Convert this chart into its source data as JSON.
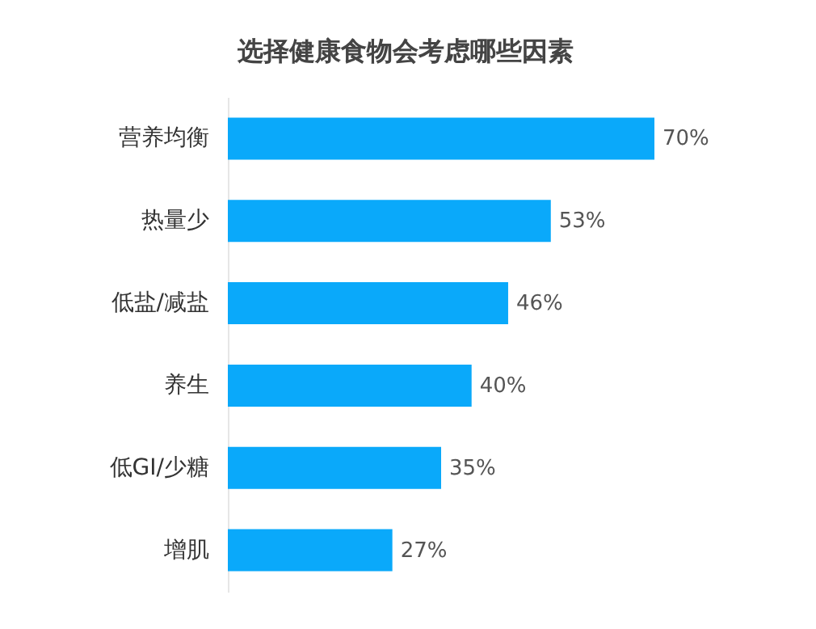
{
  "chart_data": {
    "type": "bar",
    "orientation": "horizontal",
    "title": "选择健康食物会考虑哪些因素",
    "categories": [
      "营养均衡",
      "热量少",
      "低盐/减盐",
      "养生",
      "低GI/少糖",
      "增肌"
    ],
    "values": [
      70,
      53,
      46,
      40,
      35,
      27
    ],
    "value_labels": [
      "70%",
      "53%",
      "46%",
      "40%",
      "35%",
      "27%"
    ],
    "color": "#0aa9fa"
  }
}
